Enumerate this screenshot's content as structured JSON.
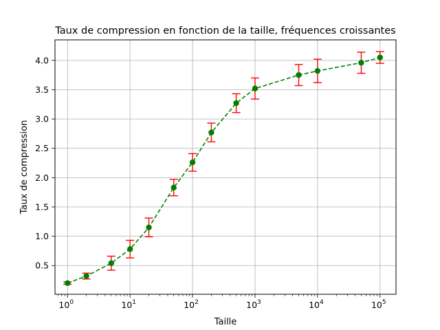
{
  "chart_data": {
    "type": "line",
    "title": "Taux de compression en fonction de la taille, fréquences croissantes",
    "xlabel": "Taille",
    "ylabel": "Taux de compression",
    "xscale": "log",
    "xlim": [
      0.63,
      180000
    ],
    "ylim": [
      0.01,
      4.35
    ],
    "grid": true,
    "x_ticks": [
      {
        "value": 1,
        "base": "10",
        "exp": "0"
      },
      {
        "value": 10,
        "base": "10",
        "exp": "1"
      },
      {
        "value": 100,
        "base": "10",
        "exp": "2"
      },
      {
        "value": 1000,
        "base": "10",
        "exp": "3"
      },
      {
        "value": 10000,
        "base": "10",
        "exp": "4"
      },
      {
        "value": 100000,
        "base": "10",
        "exp": "5"
      }
    ],
    "y_ticks": [
      "0.5",
      "1.0",
      "1.5",
      "2.0",
      "2.5",
      "3.0",
      "3.5",
      "4.0"
    ],
    "series": [
      {
        "line_color": "#008000",
        "line_style": "dashed",
        "marker": "circle",
        "errorbar_color": "#ff0000",
        "points": [
          {
            "x": 1,
            "y": 0.2,
            "err": 0.02
          },
          {
            "x": 2,
            "y": 0.32,
            "err": 0.05
          },
          {
            "x": 5,
            "y": 0.54,
            "err": 0.12
          },
          {
            "x": 10,
            "y": 0.78,
            "err": 0.15
          },
          {
            "x": 20,
            "y": 1.15,
            "err": 0.16
          },
          {
            "x": 50,
            "y": 1.83,
            "err": 0.14
          },
          {
            "x": 100,
            "y": 2.26,
            "err": 0.15
          },
          {
            "x": 200,
            "y": 2.77,
            "err": 0.16
          },
          {
            "x": 500,
            "y": 3.27,
            "err": 0.16
          },
          {
            "x": 1000,
            "y": 3.52,
            "err": 0.18
          },
          {
            "x": 5000,
            "y": 3.75,
            "err": 0.18
          },
          {
            "x": 10000,
            "y": 3.82,
            "err": 0.2
          },
          {
            "x": 50000,
            "y": 3.96,
            "err": 0.18
          },
          {
            "x": 100000,
            "y": 4.05,
            "err": 0.1
          }
        ]
      }
    ]
  }
}
